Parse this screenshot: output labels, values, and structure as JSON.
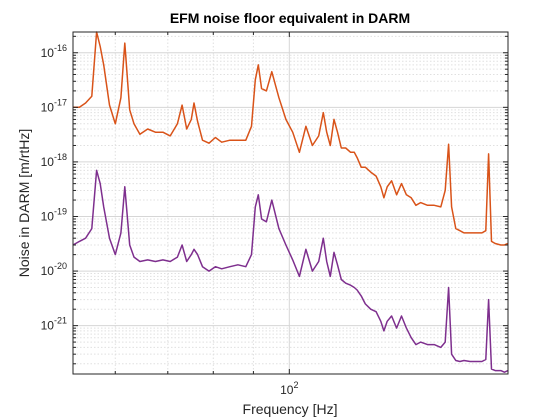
{
  "chart_data": {
    "type": "line",
    "title": "EFM noise floor equivalent in DARM",
    "xlabel": "Frequency [Hz]",
    "ylabel": "Noise in DARM [m/rtHz]",
    "xscale": "log",
    "yscale": "log",
    "xlim": [
      53,
      190
    ],
    "ylim": [
      1.3e-22,
      2.4e-16
    ],
    "grid": true,
    "minor_grid": true,
    "x_tick_labels": [
      {
        "value": 100,
        "base": "10",
        "exp": "2"
      }
    ],
    "y_tick_labels": [
      {
        "value": 1e-16,
        "base": "10",
        "exp": "-16"
      },
      {
        "value": 1e-17,
        "base": "10",
        "exp": "-17"
      },
      {
        "value": 1e-18,
        "base": "10",
        "exp": "-18"
      },
      {
        "value": 1e-19,
        "base": "10",
        "exp": "-19"
      },
      {
        "value": 1e-20,
        "base": "10",
        "exp": "-20"
      },
      {
        "value": 1e-21,
        "base": "10",
        "exp": "-21"
      }
    ],
    "series": [
      {
        "color": "#D95319",
        "x": [
          53,
          54,
          55,
          56,
          56.8,
          57.4,
          58,
          59,
          60,
          61,
          61.7,
          62.6,
          63.4,
          64.5,
          66,
          67.5,
          69,
          70.5,
          72,
          73,
          74,
          75,
          75.6,
          76.4,
          77.5,
          79,
          80.5,
          82,
          84,
          86,
          88,
          89.5,
          90.5,
          91.3,
          92.2,
          93.5,
          95,
          97,
          99,
          101,
          103,
          105,
          107,
          109,
          110.5,
          111.6,
          112.8,
          114,
          115.2,
          116.5,
          118,
          119.7,
          121,
          122,
          123.5,
          125,
          127,
          129,
          130.8,
          132,
          133.3,
          135,
          137,
          139,
          141,
          143,
          145,
          147,
          150,
          153,
          156,
          158,
          159.6,
          161,
          163,
          165,
          167,
          170,
          173,
          176,
          178,
          179.5,
          181,
          183,
          186,
          188,
          190
        ],
        "y": [
          1e-17,
          1e-17,
          1.2e-17,
          1.6e-17,
          2.4e-16,
          1.3e-16,
          6e-17,
          1.1e-17,
          5e-18,
          1.5e-17,
          1.5e-16,
          9e-18,
          5e-18,
          3.2e-18,
          4e-18,
          3.5e-18,
          3.5e-18,
          3e-18,
          5e-18,
          1.1e-17,
          4e-18,
          6e-18,
          1.2e-17,
          5.5e-18,
          2.5e-18,
          2.2e-18,
          2.8e-18,
          2.3e-18,
          2.5e-18,
          2.5e-18,
          2.5e-18,
          4.5e-18,
          3.2e-17,
          6e-17,
          2.2e-17,
          2e-17,
          4.5e-17,
          1.5e-17,
          6e-18,
          3.5e-18,
          1.5e-18,
          4.5e-18,
          2e-18,
          3e-18,
          8e-18,
          3.5e-18,
          2e-18,
          6e-18,
          3.5e-18,
          1.8e-18,
          1.8e-18,
          1.5e-18,
          1.5e-18,
          1.2e-18,
          8e-19,
          8e-19,
          6.5e-19,
          5.5e-19,
          3.5e-19,
          2.2e-19,
          3.5e-19,
          4.5e-19,
          2.5e-19,
          4e-19,
          2.5e-19,
          2.2e-19,
          1.6e-19,
          1.8e-19,
          1.6e-19,
          1.6e-19,
          1.5e-19,
          3e-19,
          2.1e-18,
          1.5e-19,
          6e-20,
          5.5e-20,
          5e-20,
          5e-20,
          5e-20,
          5e-20,
          5.5e-20,
          1.4e-18,
          3.5e-20,
          3.2e-20,
          3e-20,
          3e-20,
          3.2e-20
        ]
      },
      {
        "color": "#7E2F8E",
        "x": [
          53,
          54,
          55,
          56,
          56.8,
          57.4,
          58,
          59,
          60,
          61,
          61.7,
          62.6,
          63.4,
          64.5,
          66,
          67.5,
          69,
          70.5,
          72,
          73,
          74,
          75,
          75.6,
          76.4,
          77.5,
          79,
          80.5,
          82,
          84,
          86,
          88,
          89.5,
          90.5,
          91.3,
          92.2,
          93.5,
          95,
          97,
          99,
          101,
          103,
          105,
          107,
          109,
          110.5,
          111.6,
          112.8,
          114,
          115.2,
          116.5,
          118,
          119.7,
          121,
          122,
          123.5,
          125,
          127,
          129,
          130.8,
          132,
          133.3,
          135,
          137,
          139,
          141,
          143,
          145,
          147,
          150,
          153,
          156,
          158,
          159.6,
          161,
          163,
          165,
          167,
          170,
          173,
          176,
          178,
          179.5,
          181,
          183,
          186,
          188,
          190
        ],
        "y": [
          3e-20,
          3.5e-20,
          4e-20,
          6e-20,
          7e-19,
          4e-19,
          1.5e-19,
          4e-20,
          2e-20,
          5e-20,
          3.5e-19,
          3e-20,
          1.8e-20,
          1.5e-20,
          1.6e-20,
          1.5e-20,
          1.6e-20,
          1.5e-20,
          1.8e-20,
          3e-20,
          1.5e-20,
          2e-20,
          2.5e-20,
          2e-20,
          1.2e-20,
          1e-20,
          1.2e-20,
          1.1e-20,
          1.2e-20,
          1.3e-20,
          1.2e-20,
          2e-20,
          1.5e-19,
          2.5e-19,
          9e-20,
          8e-20,
          2e-19,
          6e-20,
          3e-20,
          1.6e-20,
          8e-21,
          2.5e-20,
          1e-20,
          1.5e-20,
          4e-20,
          1.5e-20,
          8e-21,
          2.2e-20,
          1.3e-20,
          7e-21,
          6e-21,
          5.5e-21,
          5e-21,
          4.5e-21,
          3.5e-21,
          2.5e-21,
          2e-21,
          1.8e-21,
          1.2e-21,
          8e-22,
          1.2e-21,
          1.5e-21,
          9e-22,
          1.5e-21,
          9e-22,
          6e-22,
          4.5e-22,
          5e-22,
          4.5e-22,
          4.5e-22,
          4e-22,
          5e-22,
          5e-21,
          3e-22,
          2.3e-22,
          2.2e-22,
          2.3e-22,
          2.2e-22,
          2.2e-22,
          2.2e-22,
          2.4e-22,
          3e-21,
          1.6e-22,
          1.5e-22,
          1.5e-22,
          1.4e-22,
          1.5e-22
        ]
      }
    ]
  }
}
